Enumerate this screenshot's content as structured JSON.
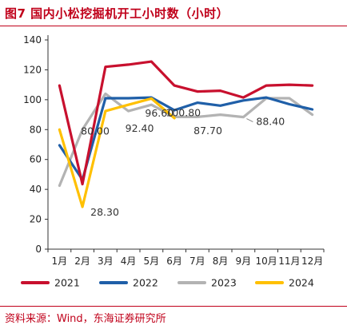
{
  "title": "图7 国内小松挖掘机开工小时数（小时）",
  "source": "资料来源：Wind，东海证券研究所",
  "chart_data": {
    "type": "line",
    "categories": [
      "1月",
      "2月",
      "3月",
      "4月",
      "5月",
      "6月",
      "7月",
      "8月",
      "9月",
      "10月",
      "11月",
      "12月"
    ],
    "ylim": [
      0,
      140
    ],
    "yticks": [
      "0",
      "20",
      "40",
      "60",
      "80",
      "100",
      "120",
      "140"
    ],
    "grid": false,
    "legend_position": "bottom",
    "series": [
      {
        "name": "2021",
        "color": "#c8102e",
        "values": [
          109.5,
          43.5,
          122,
          123.5,
          125.5,
          109.5,
          105.5,
          106,
          101.5,
          109.5,
          110,
          109.5
        ]
      },
      {
        "name": "2022",
        "color": "#1f5fa8",
        "values": [
          69.5,
          46.5,
          101,
          101,
          101.5,
          93,
          98,
          96,
          99.5,
          101.5,
          97,
          93.5
        ]
      },
      {
        "name": "2023",
        "color": "#b3b3b3",
        "values": [
          42.5,
          80.0,
          104,
          92.4,
          96.6,
          88.5,
          88.5,
          90,
          88.4,
          101,
          101,
          90
        ]
      },
      {
        "name": "2024",
        "color": "#ffc000",
        "values": [
          80,
          28.3,
          92.4,
          96.6,
          100.8,
          87.7,
          null,
          null,
          null,
          null,
          null,
          null
        ]
      }
    ],
    "annotations": [
      {
        "text": "80.00",
        "series": 2,
        "index": 1
      },
      {
        "text": "28.30",
        "series": 3,
        "index": 1
      },
      {
        "text": "92.40",
        "series": 2,
        "index": 3
      },
      {
        "text": "96.60",
        "series": 2,
        "index": 4
      },
      {
        "text": "100.80",
        "series": 3,
        "index": 4
      },
      {
        "text": "87.70",
        "series": 3,
        "index": 5
      },
      {
        "text": "88.40",
        "series": 2,
        "index": 8
      }
    ]
  }
}
